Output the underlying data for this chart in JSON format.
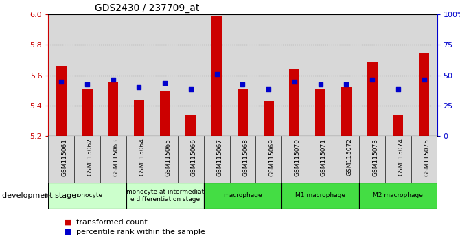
{
  "title": "GDS2430 / 237709_at",
  "samples": [
    "GSM115061",
    "GSM115062",
    "GSM115063",
    "GSM115064",
    "GSM115065",
    "GSM115066",
    "GSM115067",
    "GSM115068",
    "GSM115069",
    "GSM115070",
    "GSM115071",
    "GSM115072",
    "GSM115073",
    "GSM115074",
    "GSM115075"
  ],
  "bar_values": [
    5.66,
    5.51,
    5.56,
    5.44,
    5.5,
    5.34,
    5.99,
    5.51,
    5.43,
    5.64,
    5.51,
    5.52,
    5.69,
    5.34,
    5.75
  ],
  "dot_values": [
    5.56,
    5.54,
    5.57,
    5.52,
    5.55,
    5.51,
    5.61,
    5.54,
    5.51,
    5.56,
    5.54,
    5.54,
    5.57,
    5.51,
    5.57
  ],
  "ymin": 5.2,
  "ymax": 6.0,
  "yticks": [
    5.2,
    5.4,
    5.6,
    5.8,
    6.0
  ],
  "y2ticks": [
    0,
    25,
    50,
    75,
    100
  ],
  "y2labels": [
    "0",
    "25",
    "50",
    "75",
    "100%"
  ],
  "bar_color": "#cc0000",
  "dot_color": "#0000cc",
  "bar_bottom": 5.2,
  "groups": [
    {
      "label": "monocyte",
      "start": 0,
      "end": 2,
      "color": "#ccffcc"
    },
    {
      "label": "monocyte at intermediat\ne differentiation stage",
      "start": 3,
      "end": 5,
      "color": "#ccffcc"
    },
    {
      "label": "macrophage",
      "start": 6,
      "end": 8,
      "color": "#44dd44"
    },
    {
      "label": "M1 macrophage",
      "start": 9,
      "end": 11,
      "color": "#44dd44"
    },
    {
      "label": "M2 macrophage",
      "start": 12,
      "end": 14,
      "color": "#44dd44"
    }
  ],
  "stage_label": "development stage",
  "legend1": "transformed count",
  "legend2": "percentile rank within the sample",
  "tick_label_color_left": "#cc0000",
  "tick_label_color_right": "#0000cc",
  "xtick_bg": "#d8d8d8"
}
